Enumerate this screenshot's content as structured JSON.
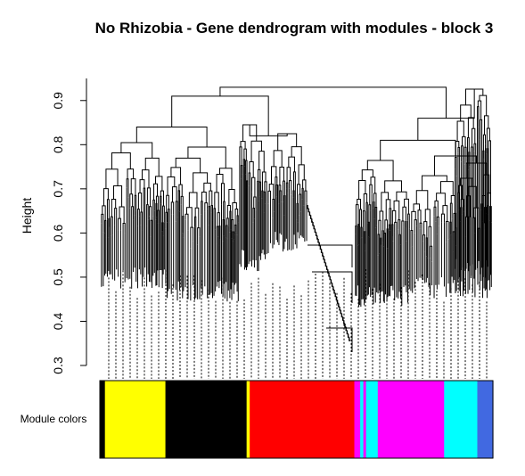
{
  "chart_data": {
    "type": "dendrogram",
    "title": "No Rhizobia - Gene dendrogram with modules - block 3",
    "ylabel": "Height",
    "xlabel": "",
    "ylim": [
      0.3,
      0.95
    ],
    "y_ticks": [
      0.3,
      0.4,
      0.5,
      0.6,
      0.7,
      0.8,
      0.9
    ],
    "y_tick_labels": [
      "0.3",
      "0.4",
      "0.5",
      "0.6",
      "0.7",
      "0.8",
      "0.9"
    ],
    "color_bar_label": "Module colors",
    "top_merge_height": 0.93,
    "major_merges": [
      {
        "clusters": "left group",
        "height": 0.91
      },
      {
        "clusters": "right group",
        "height": 0.86
      },
      {
        "clusters": "left subgroup A",
        "height": 0.84
      },
      {
        "clusters": "left subgroup B",
        "height": 0.82
      },
      {
        "clusters": "right subgroup",
        "height": 0.81
      }
    ],
    "module_colors": [
      {
        "color": "#000000",
        "fraction": 0.013
      },
      {
        "color": "#ffff00",
        "fraction": 0.155
      },
      {
        "color": "#000000",
        "fraction": 0.208
      },
      {
        "color": "#ffff00",
        "fraction": 0.008
      },
      {
        "color": "#ff0000",
        "fraction": 0.015
      },
      {
        "color": "#ff0000",
        "fraction": 0.253
      },
      {
        "color": "#ff00ff",
        "fraction": 0.015
      },
      {
        "color": "#00ffff",
        "fraction": 0.008
      },
      {
        "color": "#ff00ff",
        "fraction": 0.007
      },
      {
        "color": "#00ffff",
        "fraction": 0.03
      },
      {
        "color": "#ff00ff",
        "fraction": 0.17
      },
      {
        "color": "#00ffff",
        "fraction": 0.085
      },
      {
        "color": "#4169e1",
        "fraction": 0.04
      }
    ]
  }
}
